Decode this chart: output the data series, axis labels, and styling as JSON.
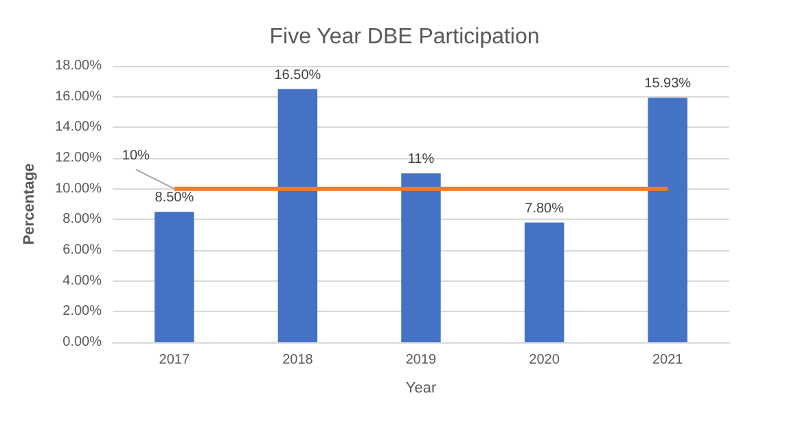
{
  "chart_data": {
    "type": "bar",
    "title": "Five Year DBE Participation",
    "xlabel": "Year",
    "ylabel": "Percentage",
    "categories": [
      "2017",
      "2018",
      "2019",
      "2020",
      "2021"
    ],
    "series": [
      {
        "type": "bar",
        "color": "#4472c4",
        "values": [
          8.5,
          16.5,
          11,
          7.8,
          15.93
        ],
        "value_labels": [
          "8.50%",
          "16.50%",
          "11%",
          "7.80%",
          "15.93%"
        ]
      },
      {
        "type": "line",
        "color": "#ed7d31",
        "marker": "none",
        "values": [
          10,
          10,
          10,
          10,
          10
        ],
        "value_labels": [
          "10%",
          null,
          null,
          null,
          null
        ]
      }
    ],
    "ylim": [
      0,
      18
    ],
    "yticks": [
      {
        "value": 0,
        "label": "0.00%"
      },
      {
        "value": 2,
        "label": "2.00%"
      },
      {
        "value": 4,
        "label": "4.00%"
      },
      {
        "value": 6,
        "label": "6.00%"
      },
      {
        "value": 8,
        "label": "8.00%"
      },
      {
        "value": 10,
        "label": "10.00%"
      },
      {
        "value": 12,
        "label": "12.00%"
      },
      {
        "value": 14,
        "label": "14.00%"
      },
      {
        "value": 16,
        "label": "16.00%"
      },
      {
        "value": 18,
        "label": "18.00%"
      }
    ],
    "grid": "y"
  }
}
